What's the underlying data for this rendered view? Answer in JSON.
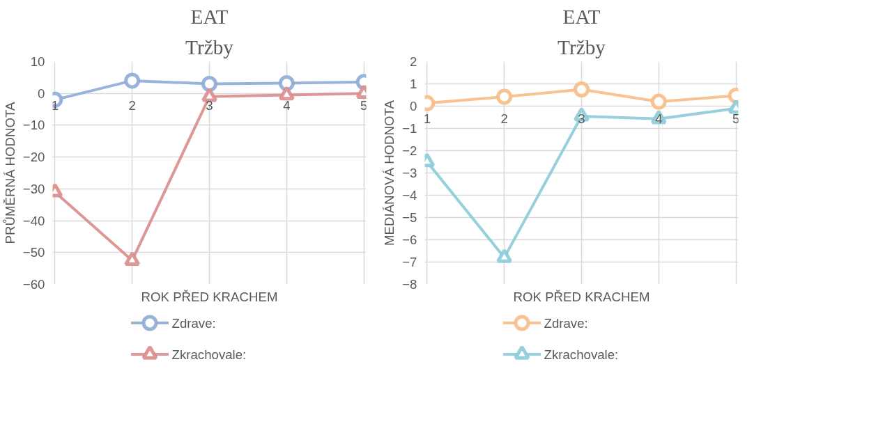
{
  "chart_data": [
    {
      "type": "line",
      "title": "EAT",
      "subtitle": "Tržby",
      "xlabel": "ROK PŘED KRACHEM",
      "ylabel": "PRŮMĚRNÁ HODNOTA",
      "categories": [
        "1",
        "2",
        "3",
        "4",
        "5"
      ],
      "series": [
        {
          "name": "Zdrave:",
          "color": "#8eabd6",
          "marker": "circle",
          "values": [
            -2,
            4,
            3,
            3.2,
            3.6
          ]
        },
        {
          "name": "Zkrachovale:",
          "color": "#da8c8c",
          "marker": "triangle",
          "values": [
            -31,
            -52.5,
            -1,
            -0.5,
            0
          ]
        }
      ],
      "ylim": [
        -60,
        10
      ],
      "yticks": [
        -60,
        -50,
        -40,
        -30,
        -20,
        -10,
        0,
        10
      ],
      "grid": true,
      "legend": "bottom"
    },
    {
      "type": "line",
      "title": "EAT",
      "subtitle": "Tržby",
      "xlabel": "ROK PŘED KRACHEM",
      "ylabel": "MEDIÁNOVÁ HODNOTA",
      "categories": [
        "1",
        "2",
        "3",
        "4",
        "5"
      ],
      "series": [
        {
          "name": "Zdrave:",
          "color": "#f8bb86",
          "marker": "circle",
          "values": [
            0.13,
            0.42,
            0.75,
            0.2,
            0.47
          ]
        },
        {
          "name": "Zkrachovale:",
          "color": "#8ccad9",
          "marker": "triangle",
          "values": [
            -2.5,
            -6.8,
            -0.45,
            -0.57,
            -0.1
          ]
        }
      ],
      "ylim": [
        -8,
        2
      ],
      "yticks": [
        -8,
        -7,
        -6,
        -5,
        -4,
        -3,
        -2,
        -1,
        0,
        1,
        2
      ],
      "grid": true,
      "legend": "bottom"
    }
  ]
}
